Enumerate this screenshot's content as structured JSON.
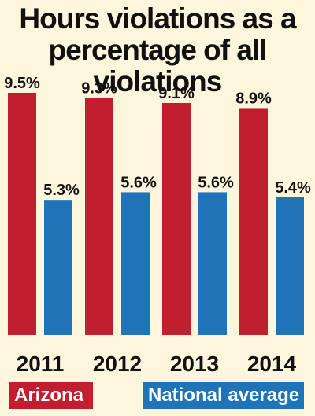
{
  "title_line1": "Hours violations as a",
  "title_line2": "percentage of all violations",
  "chart_data": {
    "type": "bar",
    "title": "Hours violations as a percentage of all violations",
    "categories": [
      "2011",
      "2012",
      "2013",
      "2014"
    ],
    "series": [
      {
        "name": "Arizona",
        "color": "#c11e2f",
        "values": [
          9.5,
          9.3,
          9.1,
          8.9
        ],
        "labels": [
          "9.5%",
          "9.3%",
          "9.1%",
          "8.9%"
        ]
      },
      {
        "name": "National average",
        "color": "#1f73b7",
        "values": [
          5.3,
          5.6,
          5.6,
          5.4
        ],
        "labels": [
          "5.3%",
          "5.6%",
          "5.6%",
          "5.4%"
        ]
      }
    ],
    "ylim": [
      0,
      9.5
    ],
    "grid": false,
    "legend_placement": "bottom"
  },
  "legend": {
    "arizona": "Arizona",
    "national": "National average"
  }
}
